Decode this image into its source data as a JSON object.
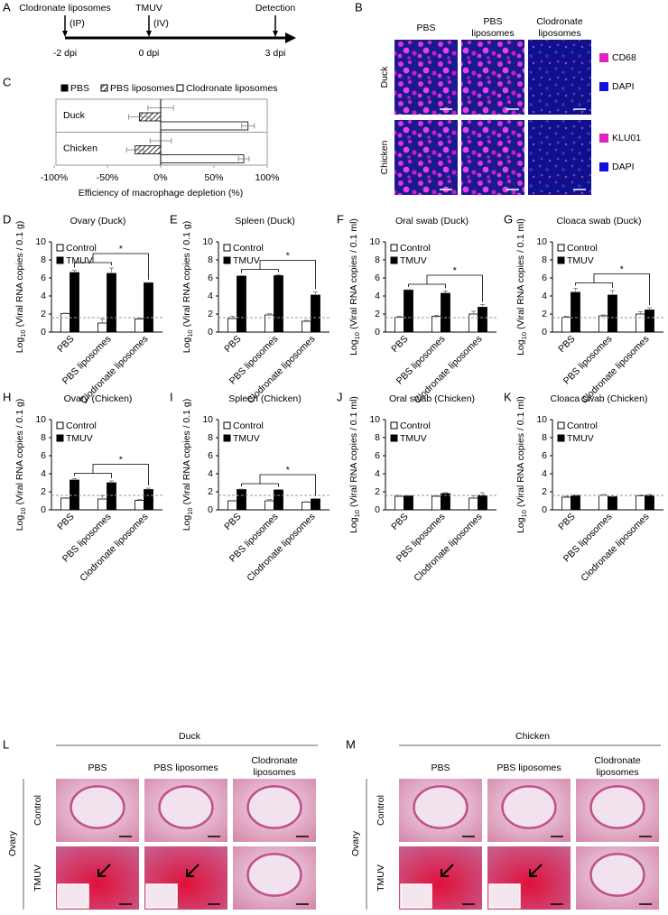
{
  "panel_a": {
    "label": "A",
    "events": [
      {
        "name": "Clodronate liposomes",
        "route": "(IP)",
        "time": "-2 dpi"
      },
      {
        "name": "TMUV",
        "route": "(IV)",
        "time": "0 dpi"
      },
      {
        "name": "Detection",
        "time": "3 dpi"
      }
    ]
  },
  "panel_b": {
    "label": "B",
    "columns": [
      [
        "PBS"
      ],
      [
        "PBS",
        "liposomes"
      ],
      [
        "Clodronate",
        "liposomes"
      ]
    ],
    "rows": [
      {
        "name": "Duck",
        "stains": [
          "CD68",
          "DAPI"
        ]
      },
      {
        "name": "Chicken",
        "stains": [
          "KLU01",
          "DAPI"
        ]
      }
    ]
  },
  "chart_data": [
    {
      "panel": "C",
      "type": "bar",
      "orientation": "horizontal",
      "categories": [
        "Duck",
        "Chicken"
      ],
      "series": [
        {
          "name": "PBS",
          "color": "#000000",
          "values": [
            0,
            0
          ],
          "errors": [
            12,
            10
          ]
        },
        {
          "name": "PBS liposomes",
          "color": "#000000",
          "fill": "hatch",
          "values": [
            -20,
            -24
          ],
          "errors": [
            10,
            8
          ]
        },
        {
          "name": "Clodronate liposomes",
          "color": "#ffffff",
          "values": [
            82,
            78
          ],
          "errors": [
            6,
            5
          ]
        }
      ],
      "xlim": [
        -100,
        100
      ],
      "xticks": [
        {
          "value": -100,
          "label": "-100%"
        },
        {
          "value": -50,
          "label": "-50%"
        },
        {
          "value": 0,
          "label": "0%"
        },
        {
          "value": 50,
          "label": "50%"
        },
        {
          "value": 100,
          "label": "100%"
        }
      ],
      "xlabel": "Efficiency of macrophage depletion (%)",
      "legend": "top"
    },
    {
      "panel": "D",
      "type": "bar",
      "title": "Ovary (Duck)",
      "ylabel": {
        "base": "Log",
        "sub": "10",
        "rest": "(Viral RNA copies / 0.1 g)"
      },
      "categories": [
        "PBS",
        "PBS liposomes",
        "Clodronate liposomes"
      ],
      "series": [
        {
          "name": "Control",
          "color": "#ffffff",
          "values": [
            2.05,
            1.0,
            1.45
          ],
          "errors": [
            0.05,
            0.45,
            0.1
          ]
        },
        {
          "name": "TMUV",
          "color": "#000000",
          "values": [
            6.6,
            6.5,
            5.45
          ],
          "errors": [
            0.25,
            0.6,
            0.05
          ]
        }
      ],
      "ylim": [
        0,
        10
      ],
      "yticks": [
        0,
        2,
        4,
        6,
        8,
        10
      ],
      "threshold": 1.6,
      "significance": "*",
      "legend": "top-left"
    },
    {
      "panel": "E",
      "type": "bar",
      "title": "Spleen (Duck)",
      "ylabel": {
        "base": "Log",
        "sub": "10",
        "rest": "(Viral RNA copies / 0.1 g)"
      },
      "categories": [
        "PBS",
        "PBS liposomes",
        "Clodronate liposomes"
      ],
      "series": [
        {
          "name": "Control",
          "color": "#ffffff",
          "values": [
            1.5,
            1.9,
            1.2
          ],
          "errors": [
            0.25,
            0.15,
            0.1
          ]
        },
        {
          "name": "TMUV",
          "color": "#000000",
          "values": [
            6.2,
            6.25,
            4.1
          ],
          "errors": [
            0.05,
            0.1,
            0.35
          ]
        }
      ],
      "ylim": [
        0,
        10
      ],
      "yticks": [
        0,
        2,
        4,
        6,
        8,
        10
      ],
      "threshold": 1.6,
      "significance": "*",
      "legend": "top-left"
    },
    {
      "panel": "F",
      "type": "bar",
      "title": "Oral swab (Duck)",
      "ylabel": {
        "base": "Log",
        "sub": "10",
        "rest": "(Viral RNA copies / 0.1 ml)"
      },
      "categories": [
        "PBS",
        "PBS liposomes",
        "Clodronate liposomes"
      ],
      "series": [
        {
          "name": "Control",
          "color": "#ffffff",
          "values": [
            1.65,
            1.75,
            2.0
          ],
          "errors": [
            0.1,
            0.1,
            0.3
          ]
        },
        {
          "name": "TMUV",
          "color": "#000000",
          "values": [
            4.65,
            4.3,
            2.75
          ],
          "errors": [
            0.05,
            0.25,
            0.3
          ]
        }
      ],
      "ylim": [
        0,
        10
      ],
      "yticks": [
        0,
        2,
        4,
        6,
        8,
        10
      ],
      "threshold": 1.6,
      "significance": "*",
      "legend": "top-left"
    },
    {
      "panel": "G",
      "type": "bar",
      "title": "Cloaca swab (Duck)",
      "ylabel": {
        "base": "Log",
        "sub": "10",
        "rest": "(Viral RNA copies / 0.1 ml)"
      },
      "categories": [
        "PBS",
        "PBS liposomes",
        "Clodronate liposomes"
      ],
      "series": [
        {
          "name": "Control",
          "color": "#ffffff",
          "values": [
            1.65,
            1.8,
            2.0
          ],
          "errors": [
            0.1,
            0.1,
            0.25
          ]
        },
        {
          "name": "TMUV",
          "color": "#000000",
          "values": [
            4.4,
            4.1,
            2.45
          ],
          "errors": [
            0.45,
            0.5,
            0.25
          ]
        }
      ],
      "ylim": [
        0,
        10
      ],
      "yticks": [
        0,
        2,
        4,
        6,
        8,
        10
      ],
      "threshold": 1.6,
      "significance": "*",
      "legend": "top-left"
    },
    {
      "panel": "H",
      "type": "bar",
      "title": "Ovary (Chicken)",
      "ylabel": {
        "base": "Log",
        "sub": "10",
        "rest": "(Viral RNA copies / 0.1 g)"
      },
      "categories": [
        "PBS",
        "PBS liposomes",
        "Clodronate liposomes"
      ],
      "series": [
        {
          "name": "Control",
          "color": "#ffffff",
          "values": [
            1.3,
            1.2,
            1.05
          ],
          "errors": [
            0.05,
            0.35,
            0.1
          ]
        },
        {
          "name": "TMUV",
          "color": "#000000",
          "values": [
            3.3,
            3.0,
            2.25
          ],
          "errors": [
            0.15,
            0.2,
            0.15
          ]
        }
      ],
      "ylim": [
        0,
        10
      ],
      "yticks": [
        0,
        2,
        4,
        6,
        8,
        10
      ],
      "threshold": 1.6,
      "significance": "*",
      "legend": "top-left"
    },
    {
      "panel": "I",
      "type": "bar",
      "title": "Spleen (Chicken)",
      "ylabel": {
        "base": "Log",
        "sub": "10",
        "rest": "(Viral RNA copies / 0.1 g)"
      },
      "categories": [
        "PBS",
        "PBS liposomes",
        "Clodronate liposomes"
      ],
      "series": [
        {
          "name": "Control",
          "color": "#ffffff",
          "values": [
            1.0,
            1.0,
            0.85
          ],
          "errors": [
            0.05,
            0.15,
            0.05
          ]
        },
        {
          "name": "TMUV",
          "color": "#000000",
          "values": [
            2.25,
            2.2,
            1.2
          ],
          "errors": [
            0.05,
            0.05,
            0.05
          ]
        }
      ],
      "ylim": [
        0,
        10
      ],
      "yticks": [
        0,
        2,
        4,
        6,
        8,
        10
      ],
      "threshold": 1.6,
      "significance": "*",
      "legend": "top-left"
    },
    {
      "panel": "J",
      "type": "bar",
      "title": "Oral swab (Chicken)",
      "ylabel": {
        "base": "Log",
        "sub": "10",
        "rest": "(Viral RNA copies / 0.1 ml)"
      },
      "categories": [
        "PBS",
        "PBS liposomes",
        "Clodronate liposomes"
      ],
      "series": [
        {
          "name": "Control",
          "color": "#ffffff",
          "values": [
            1.5,
            1.5,
            1.3
          ],
          "errors": [
            0.1,
            0.1,
            0.25
          ]
        },
        {
          "name": "TMUV",
          "color": "#000000",
          "values": [
            1.55,
            1.8,
            1.6
          ],
          "errors": [
            0.05,
            0.1,
            0.3
          ]
        }
      ],
      "ylim": [
        0,
        10
      ],
      "yticks": [
        0,
        2,
        4,
        6,
        8,
        10
      ],
      "threshold": 1.6,
      "legend": "top-left"
    },
    {
      "panel": "K",
      "type": "bar",
      "title": "Cloaca swab (Chicken)",
      "ylabel": {
        "base": "Log",
        "sub": "10",
        "rest": "(Viral RNA copies / 0.1 ml)"
      },
      "categories": [
        "PBS",
        "PBS liposomes",
        "Clodronate liposomes"
      ],
      "series": [
        {
          "name": "Control",
          "color": "#ffffff",
          "values": [
            1.4,
            1.6,
            1.55
          ],
          "errors": [
            0.1,
            0.1,
            0.1
          ]
        },
        {
          "name": "TMUV",
          "color": "#000000",
          "values": [
            1.6,
            1.45,
            1.6
          ],
          "errors": [
            0.05,
            0.05,
            0.1
          ]
        }
      ],
      "ylim": [
        0,
        10
      ],
      "yticks": [
        0,
        2,
        4,
        6,
        8,
        10
      ],
      "threshold": 1.6,
      "legend": "top-left"
    }
  ],
  "panel_l": {
    "label": "L",
    "species": "Duck",
    "tissue": "Ovary",
    "columns": [
      [
        "PBS"
      ],
      [
        "PBS liposomes"
      ],
      [
        "Clodronate",
        "liposomes"
      ]
    ],
    "rows": [
      "Control",
      "TMUV"
    ]
  },
  "panel_m": {
    "label": "M",
    "species": "Chicken",
    "tissue": "Ovary",
    "columns": [
      [
        "PBS"
      ],
      [
        "PBS liposomes"
      ],
      [
        "Clodronate",
        "liposomes"
      ]
    ],
    "rows": [
      "Control",
      "TMUV"
    ]
  }
}
